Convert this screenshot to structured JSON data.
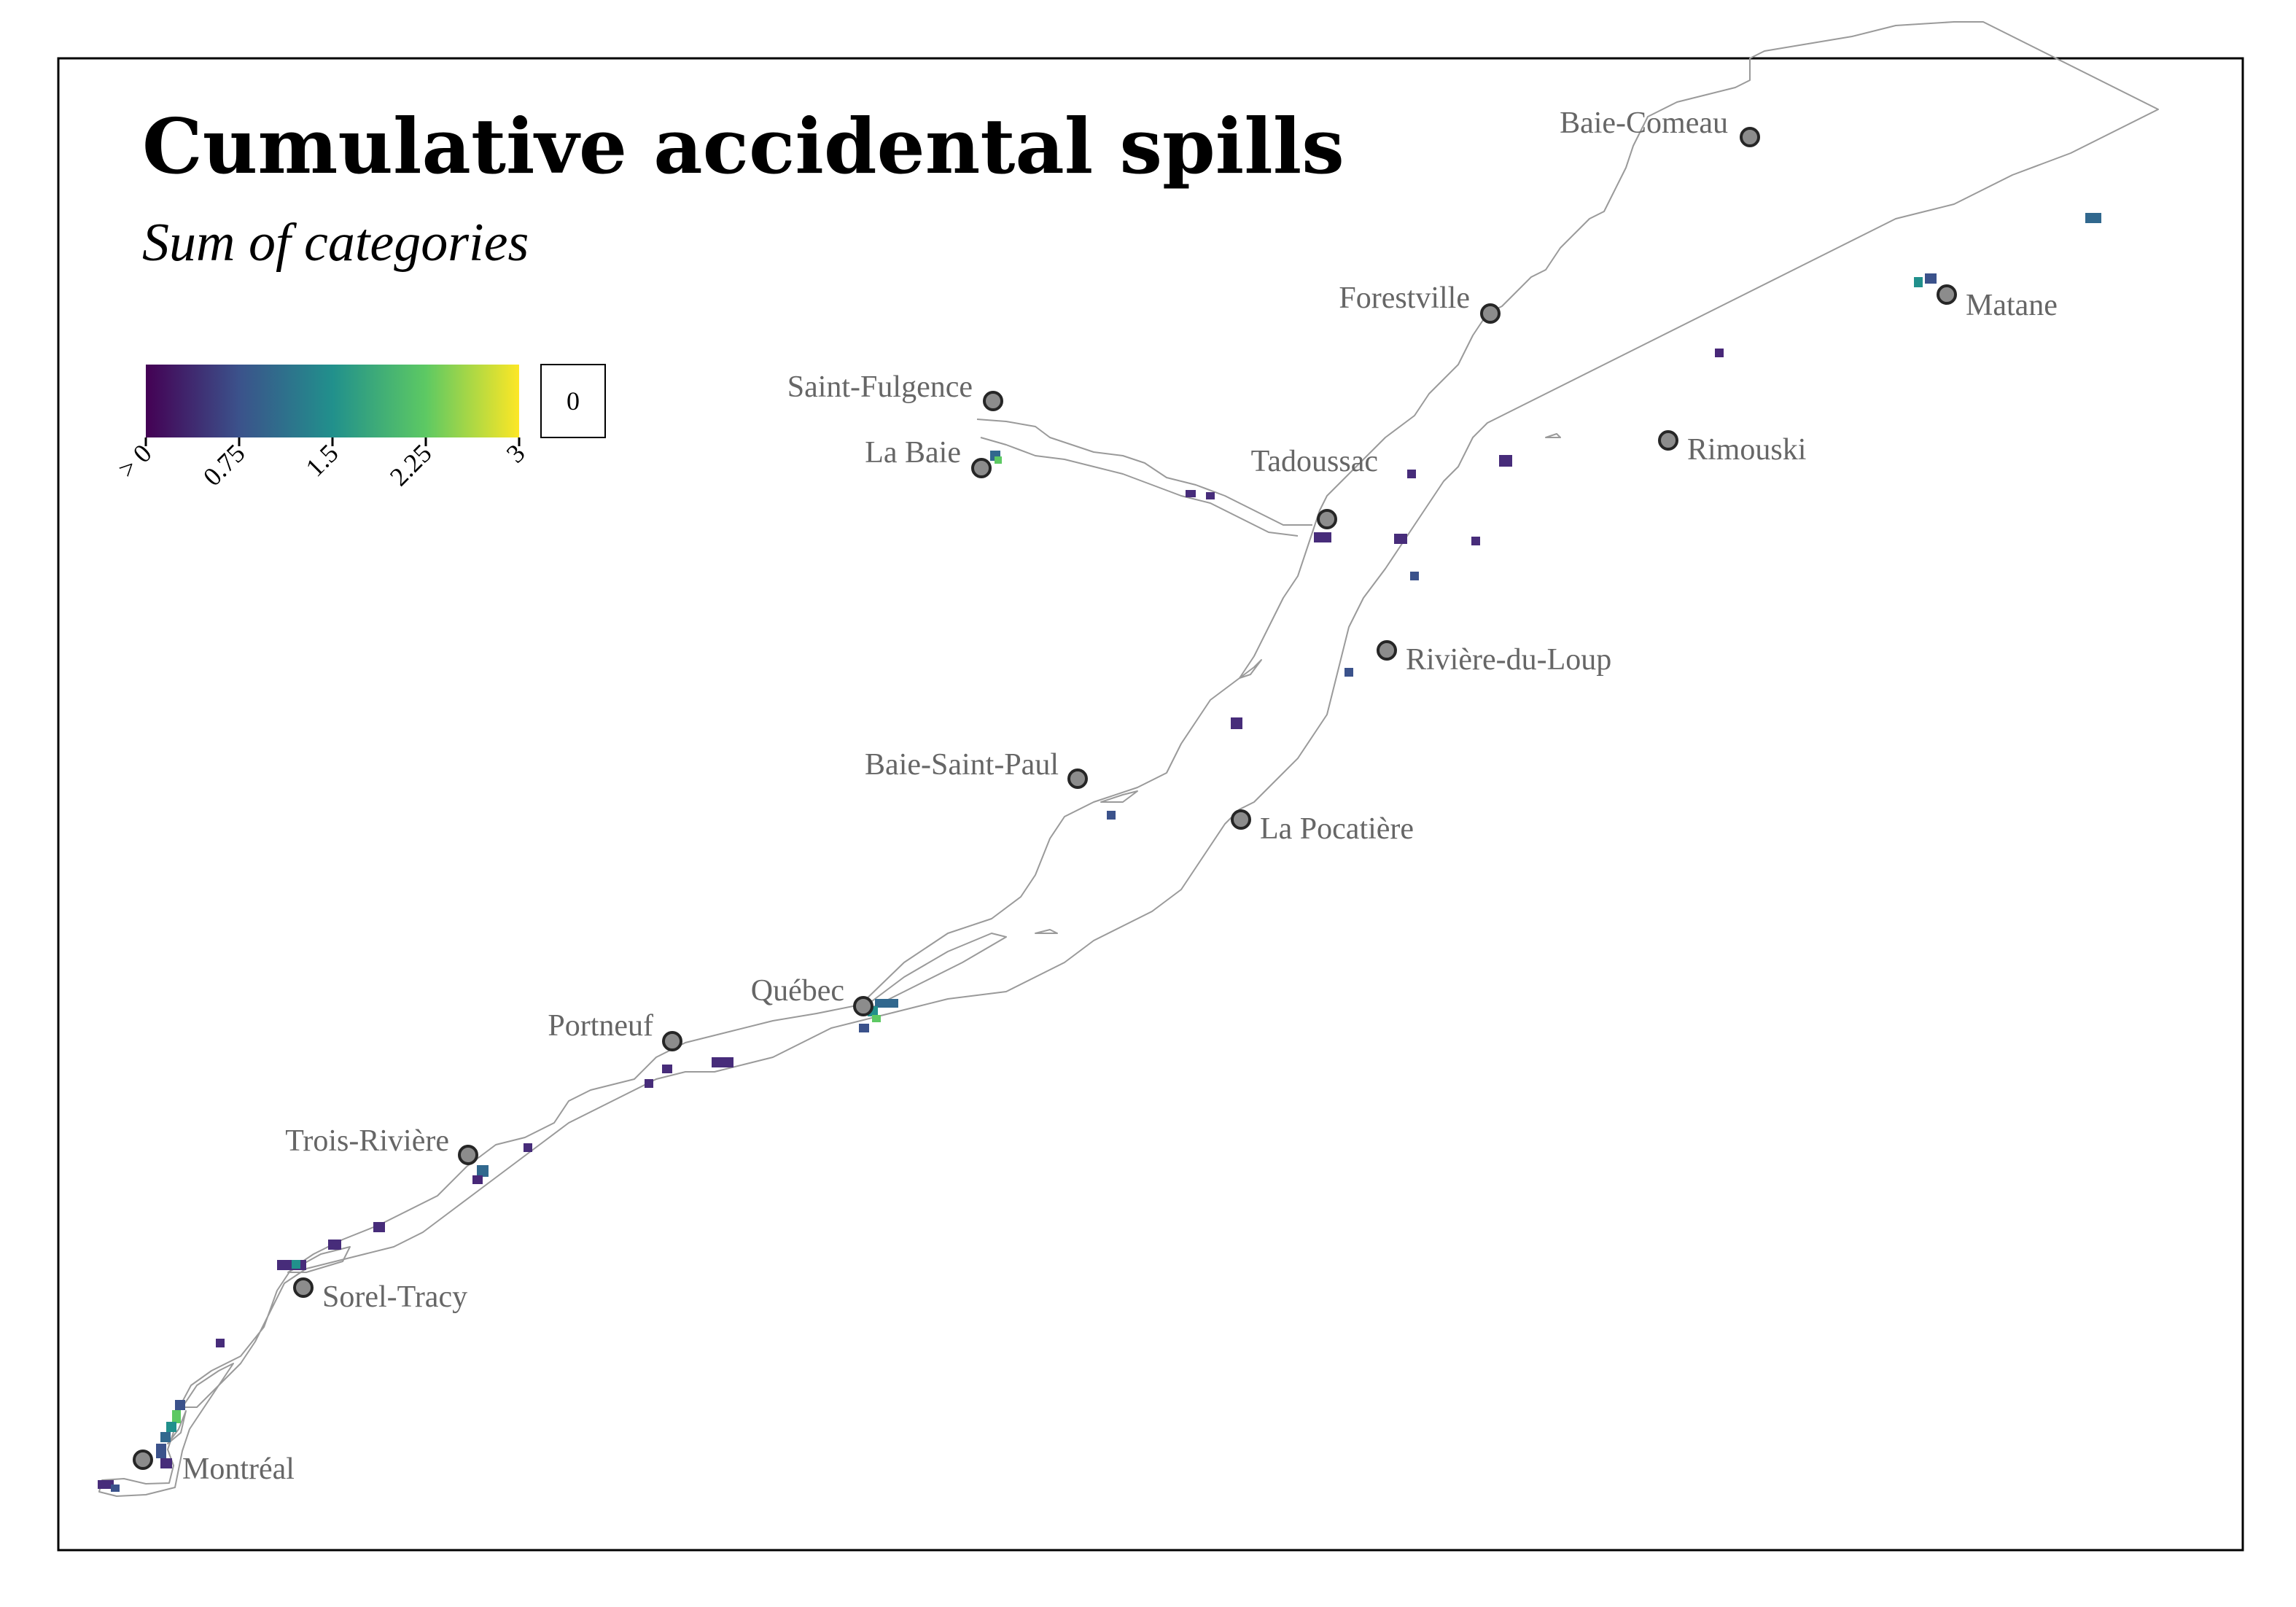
{
  "title": "Cumulative accidental spills",
  "subtitle": "Sum of categories",
  "legend": {
    "scale": "viridis",
    "min": 0,
    "max": 3,
    "tick_labels": [
      "> 0",
      "0.75",
      "1.5",
      "2.25",
      "3"
    ],
    "tick_values": [
      0,
      0.75,
      1.5,
      2.25,
      3
    ],
    "zero_box_label": "0",
    "colors": [
      "#440154",
      "#3b528b",
      "#21908c",
      "#5dc963",
      "#fde725"
    ]
  },
  "colors": {
    "coastline": "#9a9a9a",
    "city_marker_fill": "#8c8c8c",
    "city_marker_stroke": "#262626",
    "city_label": "#666666",
    "frame": "#000000"
  },
  "cities": [
    {
      "name": "Baie-Comeau"
    },
    {
      "name": "Forestville"
    },
    {
      "name": "Matane"
    },
    {
      "name": "Saint-Fulgence"
    },
    {
      "name": "La Baie"
    },
    {
      "name": "Tadoussac"
    },
    {
      "name": "Rimouski"
    },
    {
      "name": "Rivière-du-Loup"
    },
    {
      "name": "Baie-Saint-Paul"
    },
    {
      "name": "La Pocatière"
    },
    {
      "name": "Québec"
    },
    {
      "name": "Portneuf"
    },
    {
      "name": "Trois-Rivière"
    },
    {
      "name": "Sorel-Tracy"
    },
    {
      "name": "Montréal"
    }
  ]
}
